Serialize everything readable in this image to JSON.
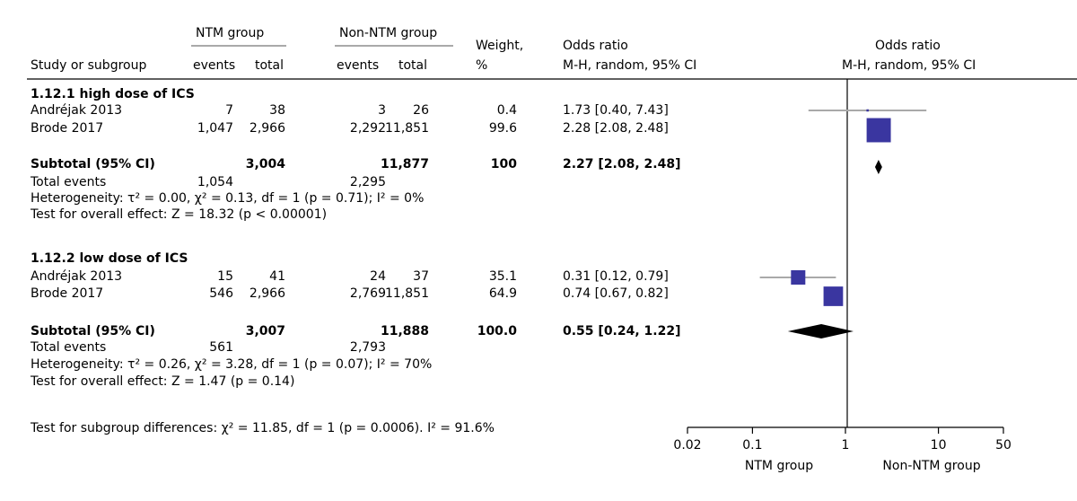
{
  "header": {
    "col_study": "Study or subgroup",
    "group1": "NTM group",
    "group2": "Non-NTM group",
    "events": "events",
    "total": "total",
    "weight_line1": "Weight,",
    "weight_line2": "%",
    "or_line1": "Odds ratio",
    "or_line2": "M-H, random, 95% CI",
    "plot_line1": "Odds ratio",
    "plot_line2": "M-H, random, 95% CI"
  },
  "subgroups": [
    {
      "title": "1.12.1 high dose of ICS",
      "studies": [
        {
          "name": "Andréjak 2013",
          "e1": "7",
          "n1": "38",
          "e2": "3",
          "n2": "26",
          "weight": "0.4",
          "ci_text": "1.73 [0.40, 7.43]"
        },
        {
          "name": "Brode 2017",
          "e1": "1,047",
          "n1": "2,966",
          "e2": "2,292",
          "n2": "11,851",
          "weight": "99.6",
          "ci_text": "2.28 [2.08, 2.48]"
        }
      ],
      "subtotal": {
        "label": "Subtotal (95% CI)",
        "n1": "3,004",
        "n2": "11,877",
        "weight": "100",
        "ci_text": "2.27 [2.08, 2.48]"
      },
      "total_events": {
        "label": "Total events",
        "e1": "1,054",
        "e2": "2,295"
      },
      "heterogeneity": "Heterogeneity: τ² = 0.00, χ² = 0.13, df = 1 (p = 0.71); I² = 0%",
      "overall": "Test for overall effect: Z = 18.32 (p < 0.00001)"
    },
    {
      "title": "1.12.2 low dose of ICS",
      "studies": [
        {
          "name": "Andréjak 2013",
          "e1": "15",
          "n1": "41",
          "e2": "24",
          "n2": "37",
          "weight": "35.1",
          "ci_text": "0.31 [0.12, 0.79]"
        },
        {
          "name": "Brode 2017",
          "e1": "546",
          "n1": "2,966",
          "e2": "2,769",
          "n2": "11,851",
          "weight": "64.9",
          "ci_text": "0.74 [0.67, 0.82]"
        }
      ],
      "subtotal": {
        "label": "Subtotal (95% CI)",
        "n1": "3,007",
        "n2": "11,888",
        "weight": "100.0",
        "ci_text": "0.55 [0.24, 1.22]"
      },
      "total_events": {
        "label": "Total events",
        "e1": "561",
        "e2": "2,793"
      },
      "heterogeneity": "Heterogeneity: τ² = 0.26, χ² = 3.28, df = 1 (p = 0.07); I² = 70%",
      "overall": "Test for overall effect: Z = 1.47 (p = 0.14)"
    }
  ],
  "subgroup_test": "Test for subgroup differences: χ² = 11.85, df = 1 (p = 0.0006). I² = 91.6%",
  "chart_data": {
    "type": "forest",
    "x_scale": "log",
    "xlim": [
      0.02,
      50
    ],
    "x_ticks": [
      0.02,
      0.1,
      1,
      10,
      50
    ],
    "x_tick_labels": [
      "0.02",
      "0.1",
      "1",
      "10",
      "50"
    ],
    "reference_line": 1,
    "left_label": "NTM group",
    "right_label": "Non-NTM group",
    "study_color": "#3a36a0",
    "ci_color": "#a9a9a9",
    "studies": [
      {
        "subgroup": 0,
        "or": 1.73,
        "lo": 0.4,
        "hi": 7.43,
        "weight": 0.4
      },
      {
        "subgroup": 0,
        "or": 2.28,
        "lo": 2.08,
        "hi": 2.48,
        "weight": 99.6
      },
      {
        "subgroup": 1,
        "or": 0.31,
        "lo": 0.12,
        "hi": 0.79,
        "weight": 35.1
      },
      {
        "subgroup": 1,
        "or": 0.74,
        "lo": 0.67,
        "hi": 0.82,
        "weight": 64.9
      }
    ],
    "subtotals": [
      {
        "subgroup": 0,
        "or": 2.27,
        "lo": 2.08,
        "hi": 2.48
      },
      {
        "subgroup": 1,
        "or": 0.55,
        "lo": 0.24,
        "hi": 1.22
      }
    ]
  }
}
